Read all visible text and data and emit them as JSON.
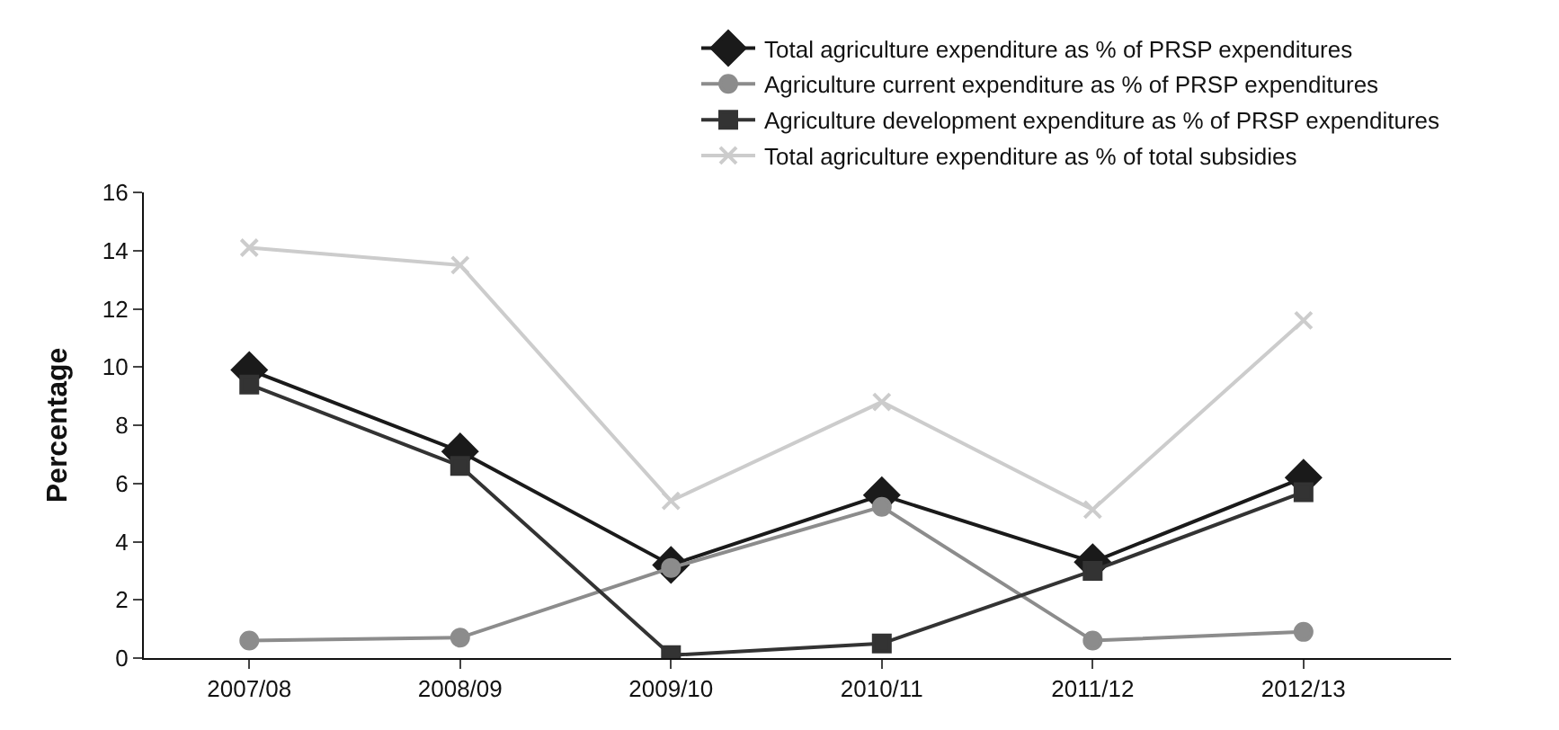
{
  "chart_data": {
    "type": "line",
    "ylabel": "Percentage",
    "categories": [
      "2007/08",
      "2008/09",
      "2009/10",
      "2010/11",
      "2011/12",
      "2012/13"
    ],
    "series": [
      {
        "name": "Total agriculture expenditure as % of PRSP expenditures",
        "color": "#1a1a1a",
        "marker": "diamond",
        "values": [
          9.9,
          7.1,
          3.2,
          5.6,
          3.3,
          6.2
        ]
      },
      {
        "name": "Agriculture current expenditure as % of PRSP expenditures",
        "color": "#8c8c8c",
        "marker": "circle",
        "values": [
          0.6,
          0.7,
          3.1,
          5.2,
          0.6,
          0.9
        ]
      },
      {
        "name": "Agriculture development expenditure as % of PRSP expenditures",
        "color": "#333333",
        "marker": "square",
        "values": [
          9.4,
          6.6,
          0.1,
          0.5,
          3.0,
          5.7
        ]
      },
      {
        "name": "Total agriculture expenditure as % of total subsidies",
        "color": "#cccccc",
        "marker": "cross",
        "values": [
          14.1,
          13.5,
          5.4,
          8.8,
          5.1,
          11.6
        ]
      }
    ],
    "ylim": [
      0,
      16
    ],
    "yticks": [
      0,
      2,
      4,
      6,
      8,
      10,
      12,
      14,
      16
    ],
    "grid": false,
    "legend": "top right"
  }
}
